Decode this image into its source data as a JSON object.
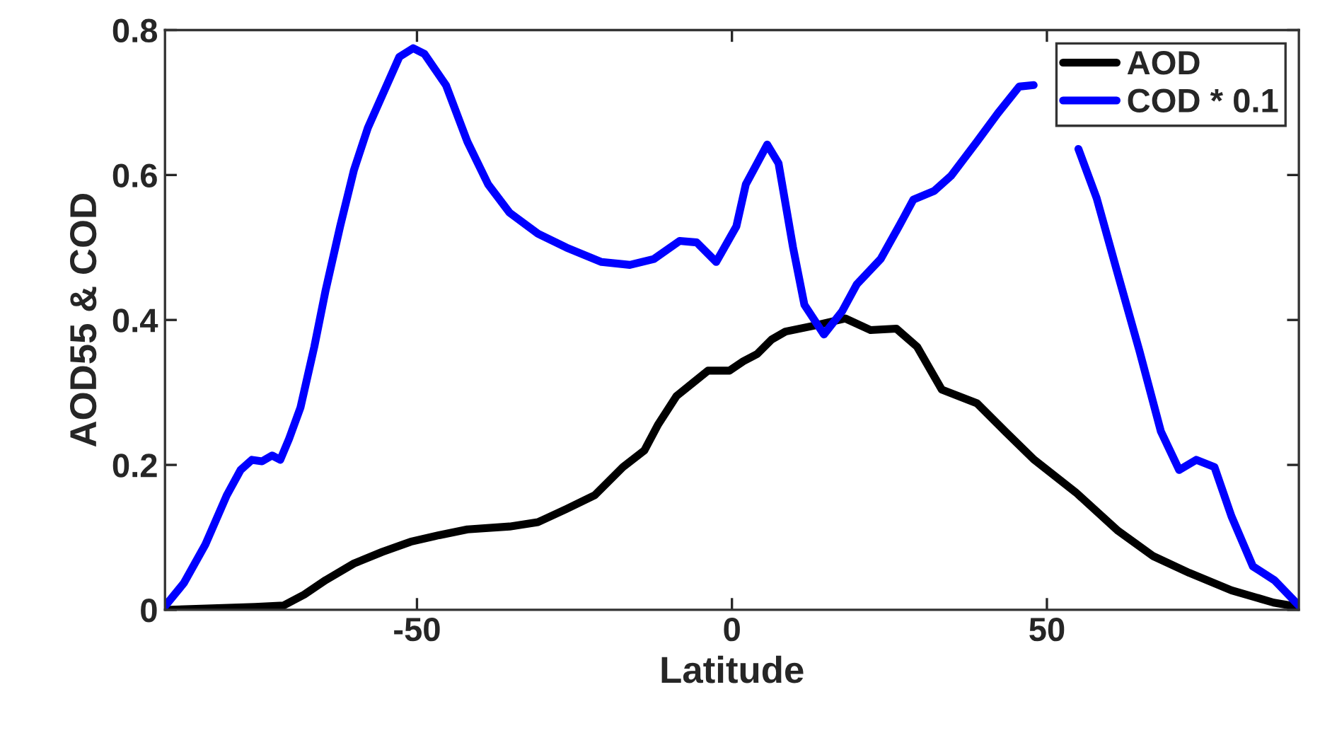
{
  "chart_data": {
    "type": "line",
    "xlabel": "Latitude",
    "ylabel": "AOD55 & COD",
    "xlim": [
      -90,
      90
    ],
    "ylim": [
      0,
      0.8
    ],
    "xticks": [
      {
        "value": -50,
        "label": "-50"
      },
      0,
      50
    ],
    "yticks": [
      0,
      0.2,
      0.4,
      0.6,
      0.8
    ],
    "grid": false,
    "legend": "top right",
    "line_style": "solid",
    "marker": "none",
    "series": [
      {
        "name": "AOD",
        "color": "#000000",
        "x": [
          -90,
          -82.5,
          -75.7,
          -71.2,
          -67.9,
          -64.5,
          -60,
          -55.5,
          -51,
          -46.5,
          -42,
          -35.3,
          -30.8,
          -26.3,
          -21.8,
          -17.3,
          -13.9,
          -11.7,
          -8.8,
          -6.1,
          -3.8,
          -0.4,
          1.8,
          4,
          6.3,
          8.5,
          13,
          18,
          22,
          26.1,
          29.4,
          33.3,
          38.9,
          43.4,
          48,
          54.6,
          61.3,
          66.9,
          72.6,
          79.3,
          86,
          90
        ],
        "values": [
          0,
          0.002,
          0.004,
          0.006,
          0.021,
          0.041,
          0.064,
          0.08,
          0.094,
          0.103,
          0.111,
          0.115,
          0.121,
          0.139,
          0.158,
          0.197,
          0.22,
          0.256,
          0.295,
          0.314,
          0.33,
          0.33,
          0.343,
          0.353,
          0.373,
          0.384,
          0.392,
          0.402,
          0.386,
          0.388,
          0.363,
          0.304,
          0.285,
          0.246,
          0.207,
          0.162,
          0.109,
          0.074,
          0.051,
          0.027,
          0.01,
          0.004
        ]
      },
      {
        "name": "COD * 0.1",
        "color": "#0000ff",
        "x": [
          -90,
          -87,
          -83.6,
          -80.2,
          -78,
          -76.2,
          -74.6,
          -73,
          -71.7,
          -70.3,
          -68.5,
          -66.3,
          -64.5,
          -62.2,
          -60,
          -57.8,
          -55.1,
          -52.8,
          -50.6,
          -48.8,
          -45.4,
          -42,
          -38.7,
          -35.3,
          -30.8,
          -26.3,
          -20.7,
          -16.2,
          -12.4,
          -8.3,
          -5.6,
          -2.5,
          0.7,
          2.2,
          5.6,
          7.4,
          9.7,
          11.5,
          14.6,
          17.5,
          19.8,
          23.6,
          26.5,
          28.8,
          32.1,
          34.8,
          38.9,
          42.2,
          45.6,
          47.9,
          51,
          55,
          57.9,
          61.3,
          64.7,
          68.1,
          71,
          73.7,
          76.6,
          79.3,
          82.7,
          86.1,
          90
        ],
        "values": [
          0.005,
          0.037,
          0.09,
          0.158,
          0.193,
          0.207,
          0.205,
          0.213,
          0.207,
          0.236,
          0.279,
          0.363,
          0.441,
          0.529,
          0.607,
          0.665,
          0.718,
          0.763,
          0.775,
          0.767,
          0.724,
          0.646,
          0.587,
          0.548,
          0.519,
          0.5,
          0.48,
          0.476,
          0.484,
          0.509,
          0.507,
          0.48,
          0.529,
          0.587,
          0.642,
          0.616,
          0.5,
          0.421,
          0.38,
          0.412,
          0.449,
          0.484,
          0.529,
          0.566,
          0.578,
          0.599,
          0.646,
          0.685,
          0.722,
          0.724,
          null,
          0.636,
          0.568,
          0.462,
          0.357,
          0.246,
          0.193,
          0.207,
          0.197,
          0.129,
          0.06,
          0.041,
          0.006
        ]
      }
    ]
  }
}
